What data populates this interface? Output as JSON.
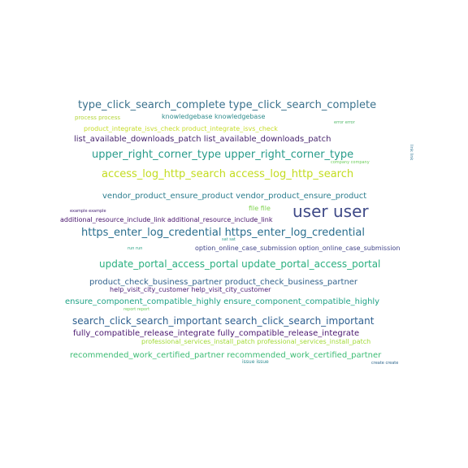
{
  "word_cloud": {
    "words": [
      {
        "text": "type_click_search_complete type_click_search_complete",
        "color": "#3b728d"
      },
      {
        "text": "knowledgebase knowledgebase",
        "color": "#2e8c8c"
      },
      {
        "text": "process process",
        "color": "#b4d63a"
      },
      {
        "text": "error error",
        "color": "#54b96b"
      },
      {
        "text": "product_integrate_isvs_check product_integrate_isvs_check",
        "color": "#c6dc2a"
      },
      {
        "text": "list_available_downloads_patch list_available_downloads_patch",
        "color": "#48266e"
      },
      {
        "text": "upper_right_corner_type upper_right_corner_type",
        "color": "#279b8a"
      },
      {
        "text": "company company",
        "color": "#6ccd5a"
      },
      {
        "text": "link link",
        "color": "#3a7c9b"
      },
      {
        "text": "access_log_http_search access_log_http_search",
        "color": "#c3dc1f"
      },
      {
        "text": "vendor_product_ensure_product vendor_product_ensure_product",
        "color": "#2c7d8e"
      },
      {
        "text": "file file",
        "color": "#7fd34e"
      },
      {
        "text": "example example",
        "color": "#482576"
      },
      {
        "text": "user user",
        "color": "#3f4a87"
      },
      {
        "text": "additional_resource_include_link additional_resource_include_link",
        "color": "#46116a"
      },
      {
        "text": "https_enter_log_credential https_enter_log_credential",
        "color": "#2a6e8e"
      },
      {
        "text": "sat sat",
        "color": "#2fa18d"
      },
      {
        "text": "run run",
        "color": "#2ba184"
      },
      {
        "text": "option_online_case_submission option_online_case_submission",
        "color": "#414488"
      },
      {
        "text": "update_portal_access_portal update_portal_access_portal",
        "color": "#29af7f"
      },
      {
        "text": "product_check_business_partner product_check_business_partner",
        "color": "#33638d"
      },
      {
        "text": "help_visit_city_customer help_visit_city_customer",
        "color": "#4a1a72"
      },
      {
        "text": "ensure_component_compatible_highly ensure_component_compatible_highly",
        "color": "#20a386"
      },
      {
        "text": "report report",
        "color": "#6ece58"
      },
      {
        "text": "search_click_search_important search_click_search_important",
        "color": "#2e5f8f"
      },
      {
        "text": "fully_compatible_release_integrate fully_compatible_release_integrate",
        "color": "#4a186f"
      },
      {
        "text": "professional_services_install_patch professional_services_install_patch",
        "color": "#a2da37"
      },
      {
        "text": "recommended_work_certified_partner recommended_work_certified_partner",
        "color": "#3dbc74"
      },
      {
        "text": "issue issue",
        "color": "#2e8c91"
      },
      {
        "text": "create create",
        "color": "#31688e"
      }
    ]
  }
}
